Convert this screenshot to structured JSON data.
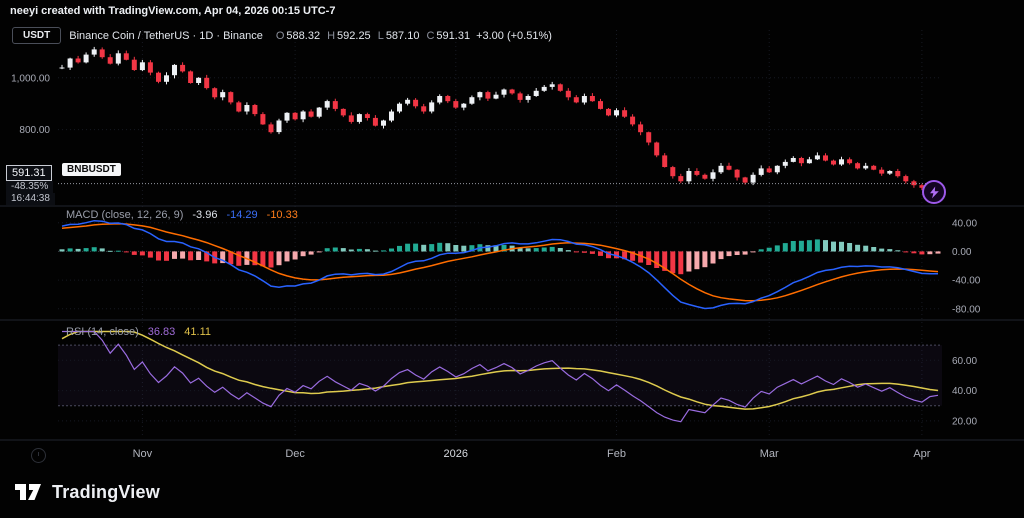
{
  "header": {
    "credit": "neeyi created with TradingView.com, Apr 04, 2026 00:15 UTC-7"
  },
  "toolbar": {
    "currency_button": "USDT"
  },
  "symbol": {
    "title": "Binance Coin / TetherUS · 1D · Binance",
    "o_label": "O",
    "o": "588.32",
    "h_label": "H",
    "h": "592.25",
    "l_label": "L",
    "l": "587.10",
    "c_label": "C",
    "c": "591.31",
    "change": "+3.00 (+0.51%)"
  },
  "price_label": {
    "price": "591.31",
    "change_pct": "-48.35%",
    "countdown": "16:44:38",
    "tag": "BNBUSDT"
  },
  "macd": {
    "title": "MACD (close, 12, 26, 9)",
    "hist_value": "-3.96",
    "macd_value": "-14.29",
    "signal_value": "-10.33"
  },
  "rsi": {
    "title": "RSI (14, close)",
    "rsi_value": "36.83",
    "ma_value": "41.11"
  },
  "footer": {
    "brand": "TradingView"
  },
  "chart_data": {
    "type": "candlestick",
    "symbol": "BNBUSDT",
    "interval": "1D",
    "last_bar": {
      "o": 588.32,
      "h": 592.25,
      "l": 587.1,
      "c": 591.31,
      "change": 3.0,
      "change_pct": 0.51
    },
    "closes": [
      1040,
      1075,
      1060,
      1090,
      1110,
      1080,
      1055,
      1095,
      1070,
      1030,
      1060,
      1020,
      985,
      1010,
      1050,
      1025,
      980,
      1000,
      960,
      925,
      945,
      905,
      870,
      895,
      860,
      820,
      790,
      835,
      865,
      840,
      870,
      850,
      885,
      910,
      880,
      855,
      830,
      860,
      845,
      815,
      835,
      870,
      900,
      915,
      890,
      870,
      905,
      930,
      910,
      885,
      900,
      925,
      945,
      920,
      935,
      955,
      940,
      915,
      930,
      950,
      965,
      975,
      950,
      925,
      905,
      930,
      910,
      880,
      855,
      875,
      850,
      820,
      790,
      750,
      700,
      655,
      620,
      600,
      640,
      625,
      610,
      635,
      660,
      645,
      615,
      595,
      625,
      650,
      635,
      660,
      675,
      690,
      670,
      685,
      700,
      680,
      665,
      685,
      670,
      650,
      660,
      645,
      630,
      640,
      620,
      600,
      585,
      575,
      588.32,
      591.31
    ],
    "indicator_warmup_closes": [
      880,
      892,
      905,
      918,
      930,
      926,
      940,
      955,
      948,
      962,
      975,
      985,
      978,
      995,
      1005,
      1012,
      1020,
      1015,
      1028,
      1035,
      1030,
      1038
    ],
    "price_axis": {
      "range": [
        520,
        1185
      ],
      "current_price": 591.31,
      "ticks": [
        {
          "label": "1,000.00",
          "value": 1000
        },
        {
          "label": "800.00",
          "value": 800
        }
      ]
    },
    "macd_panel": {
      "params": [
        12,
        26,
        9
      ],
      "current": {
        "hist": -3.96,
        "macd": -14.29,
        "signal": -10.33
      },
      "range": [
        -90,
        55
      ],
      "ticks": [
        {
          "label": "40.00",
          "value": 40
        },
        {
          "label": "0.00",
          "value": 0
        },
        {
          "label": "-40.00",
          "value": -40
        },
        {
          "label": "-80.00",
          "value": -80
        }
      ]
    },
    "rsi_panel": {
      "period": 14,
      "current": {
        "rsi": 36.83,
        "ma": 41.11
      },
      "range": [
        10,
        80
      ],
      "band": [
        30,
        70
      ],
      "ticks": [
        {
          "label": "60.00",
          "value": 60
        },
        {
          "label": "40.00",
          "value": 40
        },
        {
          "label": "20.00",
          "value": 20
        }
      ]
    },
    "time_ticks": [
      {
        "label": "Nov",
        "bar": 10,
        "major": false
      },
      {
        "label": "Dec",
        "bar": 29,
        "major": false
      },
      {
        "label": "2026",
        "bar": 49,
        "major": true
      },
      {
        "label": "Feb",
        "bar": 69,
        "major": false
      },
      {
        "label": "Mar",
        "bar": 88,
        "major": false
      },
      {
        "label": "Apr",
        "bar": 107,
        "major": false
      }
    ],
    "colors": {
      "up": "#eef1f5",
      "down": "#f23645",
      "macd": "#2962ff",
      "signal": "#ff6d00",
      "hist_pos": "#22ab94",
      "hist_pos_weak": "#82cabe",
      "hist_neg": "#f23645",
      "hist_neg_weak": "#f6a9ad",
      "rsi": "#9a6ce0",
      "rsi_ma": "#decb4e",
      "band": "#7e57c2",
      "grid": "#161922",
      "divider": "#20242e",
      "axis_text": "#a8abb6"
    }
  }
}
